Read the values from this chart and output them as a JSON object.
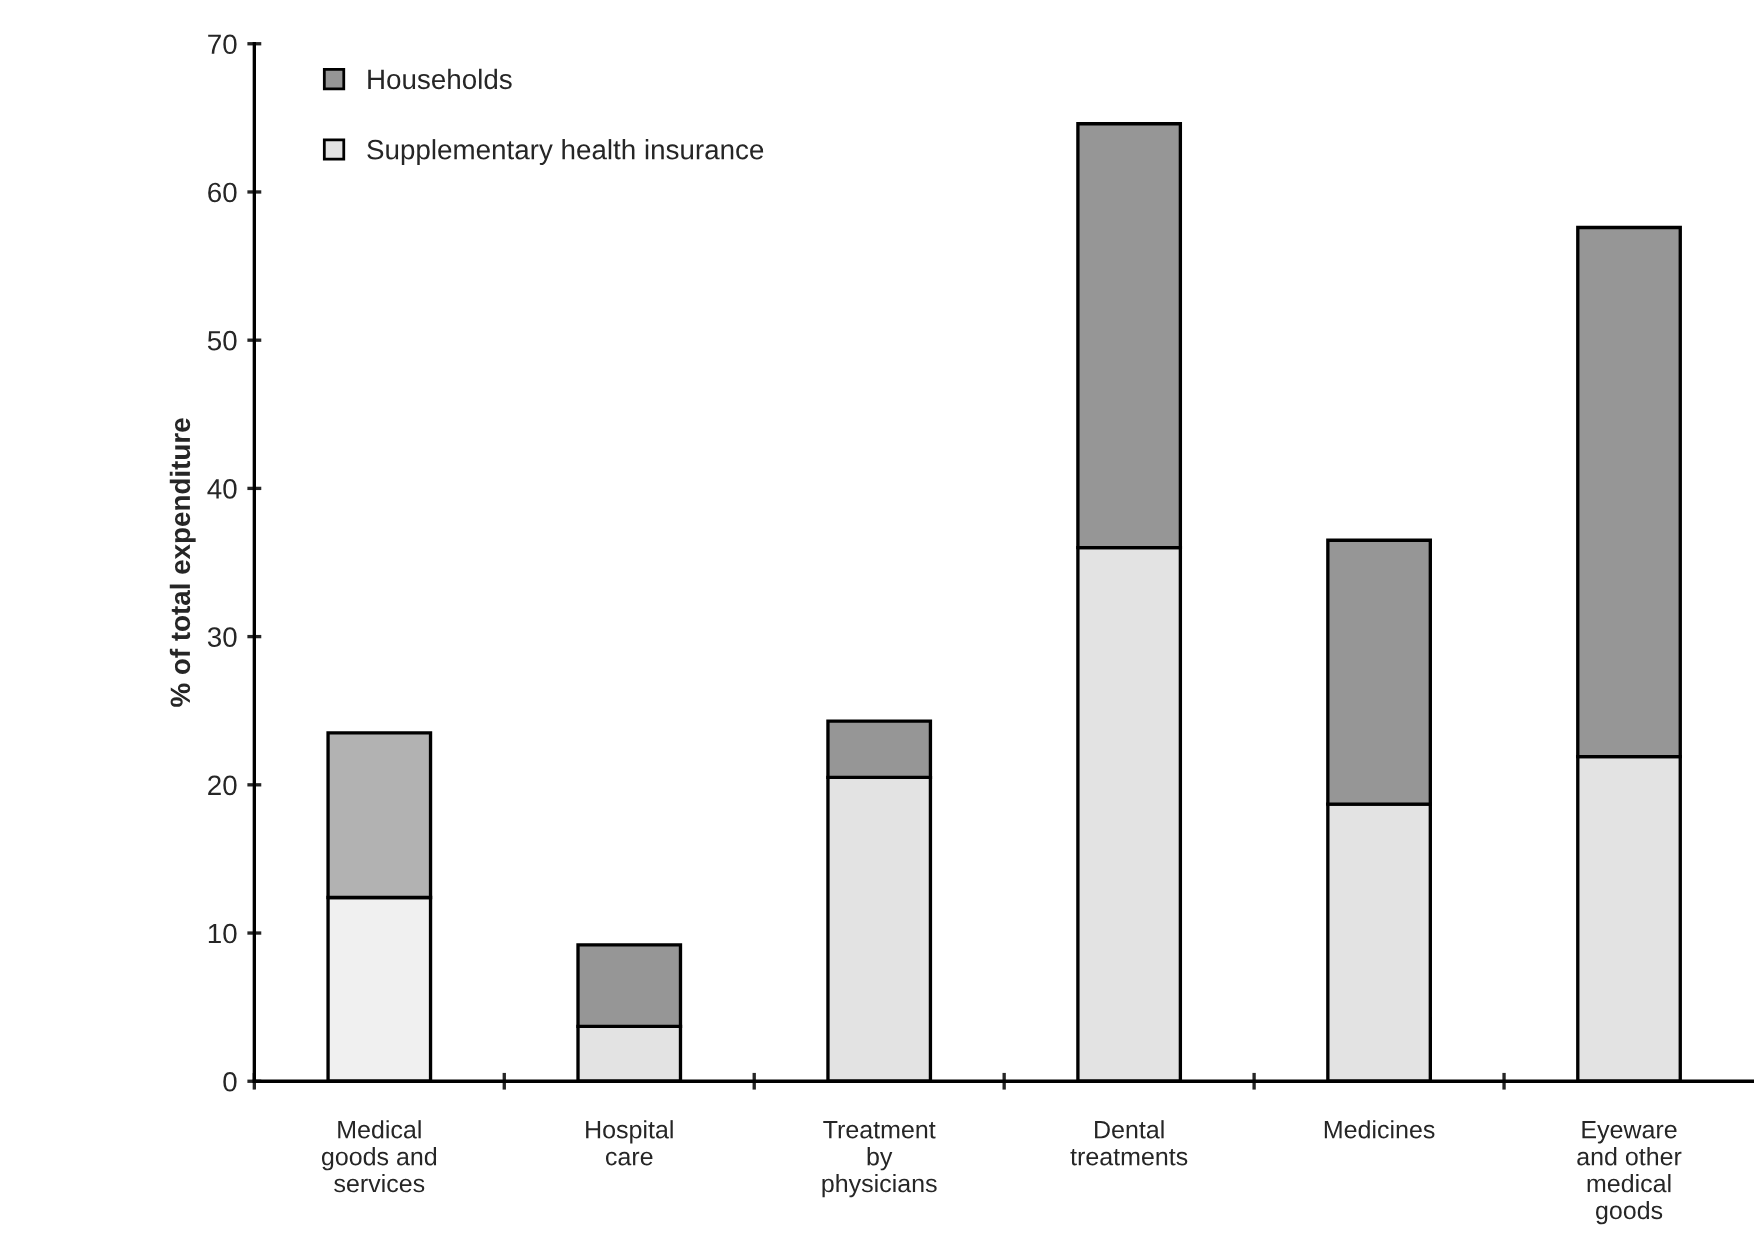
{
  "chart_data": {
    "type": "bar",
    "stacked": true,
    "ylabel": "% of total expenditure",
    "categories": [
      "Medical\ngoods and\nservices",
      "Hospital\ncare",
      "Treatment\nby\nphysicians",
      "Dental\ntreatments",
      "Medicines",
      "Eyeware\nand other\nmedical\ngoods"
    ],
    "series": [
      {
        "name": "Supplementary health insurance",
        "color": "#e3e3e3",
        "colors": [
          "#f0f0f0",
          "#e3e3e3",
          "#e3e3e3",
          "#e3e3e3",
          "#e3e3e3",
          "#e3e3e3"
        ],
        "values": [
          12.4,
          3.7,
          20.5,
          36.0,
          18.7,
          21.9
        ]
      },
      {
        "name": "Households",
        "color": "#969696",
        "colors": [
          "#b2b2b2",
          "#969696",
          "#969696",
          "#969696",
          "#969696",
          "#969696"
        ],
        "values": [
          11.1,
          5.5,
          3.8,
          28.6,
          17.8,
          35.7
        ]
      }
    ],
    "ylim": [
      0,
      70
    ],
    "yticks": [
      0,
      10,
      20,
      30,
      40,
      50,
      60,
      70
    ],
    "grid": false,
    "legend": "top left"
  }
}
